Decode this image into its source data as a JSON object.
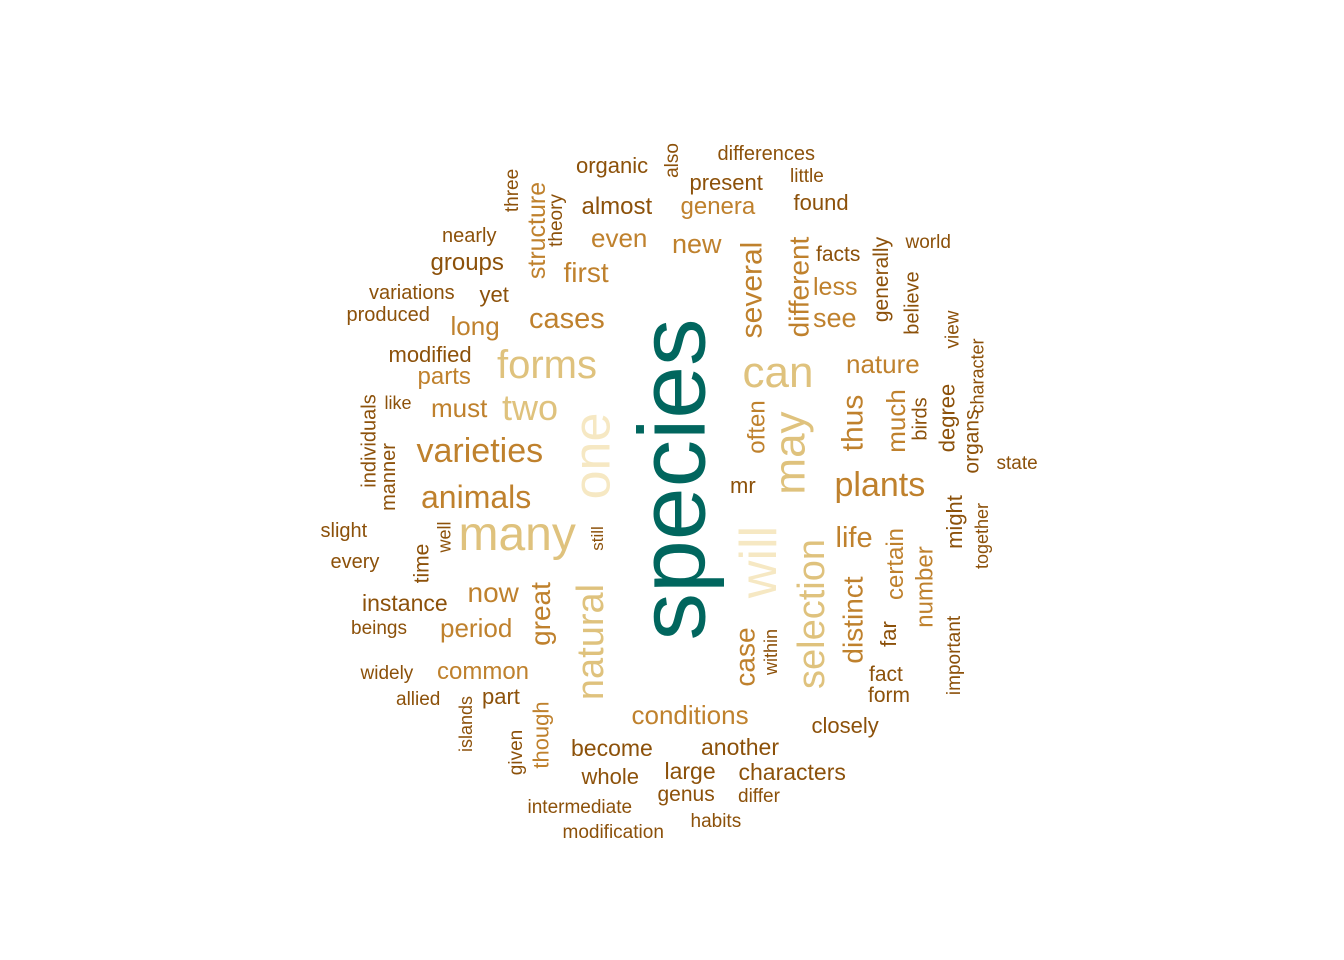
{
  "palette": {
    "teal": "#01665e",
    "cream": "#f6e8c3",
    "tan": "#dfc27d",
    "brown": "#bf812d",
    "dark_brown": "#8c510a"
  },
  "words": [
    {
      "text": "species",
      "color": "teal",
      "rotated": true
    },
    {
      "text": "will",
      "color": "cream",
      "rotated": true
    },
    {
      "text": "one",
      "color": "cream",
      "rotated": true
    },
    {
      "text": "many",
      "color": "tan",
      "rotated": false
    },
    {
      "text": "may",
      "color": "tan",
      "rotated": true
    },
    {
      "text": "can",
      "color": "tan",
      "rotated": false
    },
    {
      "text": "forms",
      "color": "tan",
      "rotated": false
    },
    {
      "text": "selection",
      "color": "tan",
      "rotated": true
    },
    {
      "text": "natural",
      "color": "tan",
      "rotated": true
    },
    {
      "text": "two",
      "color": "tan",
      "rotated": false
    },
    {
      "text": "varieties",
      "color": "brown",
      "rotated": false
    },
    {
      "text": "plants",
      "color": "brown",
      "rotated": false
    },
    {
      "text": "animals",
      "color": "brown",
      "rotated": false
    },
    {
      "text": "several",
      "color": "brown",
      "rotated": true
    },
    {
      "text": "thus",
      "color": "brown",
      "rotated": true
    },
    {
      "text": "great",
      "color": "brown",
      "rotated": true
    },
    {
      "text": "distinct",
      "color": "brown",
      "rotated": true
    },
    {
      "text": "different",
      "color": "brown",
      "rotated": true
    },
    {
      "text": "case",
      "color": "brown",
      "rotated": true
    },
    {
      "text": "cases",
      "color": "brown",
      "rotated": false
    },
    {
      "text": "life",
      "color": "brown",
      "rotated": false
    },
    {
      "text": "first",
      "color": "brown",
      "rotated": false
    },
    {
      "text": "now",
      "color": "brown",
      "rotated": false
    },
    {
      "text": "much",
      "color": "brown",
      "rotated": true
    },
    {
      "text": "conditions",
      "color": "brown",
      "rotated": false
    },
    {
      "text": "nature",
      "color": "brown",
      "rotated": false
    },
    {
      "text": "must",
      "color": "brown",
      "rotated": false
    },
    {
      "text": "see",
      "color": "brown",
      "rotated": false
    },
    {
      "text": "even",
      "color": "brown",
      "rotated": false
    },
    {
      "text": "new",
      "color": "brown",
      "rotated": false
    },
    {
      "text": "structure",
      "color": "brown",
      "rotated": true
    },
    {
      "text": "period",
      "color": "brown",
      "rotated": false
    },
    {
      "text": "number",
      "color": "brown",
      "rotated": true
    },
    {
      "text": "long",
      "color": "brown",
      "rotated": false
    },
    {
      "text": "certain",
      "color": "brown",
      "rotated": true
    },
    {
      "text": "common",
      "color": "brown",
      "rotated": false
    },
    {
      "text": "often",
      "color": "brown",
      "rotated": true
    },
    {
      "text": "genera",
      "color": "brown",
      "rotated": false
    },
    {
      "text": "less",
      "color": "brown",
      "rotated": false
    },
    {
      "text": "parts",
      "color": "brown",
      "rotated": false
    },
    {
      "text": "though",
      "color": "brown",
      "rotated": true
    },
    {
      "text": "groups",
      "color": "dark_brown",
      "rotated": false
    },
    {
      "text": "almost",
      "color": "dark_brown",
      "rotated": false
    },
    {
      "text": "instance",
      "color": "dark_brown",
      "rotated": false
    },
    {
      "text": "degree",
      "color": "dark_brown",
      "rotated": true
    },
    {
      "text": "generally",
      "color": "dark_brown",
      "rotated": true
    },
    {
      "text": "become",
      "color": "dark_brown",
      "rotated": false
    },
    {
      "text": "another",
      "color": "dark_brown",
      "rotated": false
    },
    {
      "text": "might",
      "color": "dark_brown",
      "rotated": true
    },
    {
      "text": "large",
      "color": "dark_brown",
      "rotated": false
    },
    {
      "text": "whole",
      "color": "dark_brown",
      "rotated": false
    },
    {
      "text": "characters",
      "color": "dark_brown",
      "rotated": false
    },
    {
      "text": "closely",
      "color": "dark_brown",
      "rotated": false
    },
    {
      "text": "far",
      "color": "dark_brown",
      "rotated": true
    },
    {
      "text": "yet",
      "color": "dark_brown",
      "rotated": false
    },
    {
      "text": "mr",
      "color": "dark_brown",
      "rotated": false
    },
    {
      "text": "organic",
      "color": "dark_brown",
      "rotated": false
    },
    {
      "text": "present",
      "color": "dark_brown",
      "rotated": false
    },
    {
      "text": "found",
      "color": "dark_brown",
      "rotated": false
    },
    {
      "text": "modified",
      "color": "dark_brown",
      "rotated": false
    },
    {
      "text": "part",
      "color": "dark_brown",
      "rotated": false
    },
    {
      "text": "form",
      "color": "dark_brown",
      "rotated": false
    },
    {
      "text": "fact",
      "color": "dark_brown",
      "rotated": false
    },
    {
      "text": "facts",
      "color": "dark_brown",
      "rotated": false
    },
    {
      "text": "birds",
      "color": "dark_brown",
      "rotated": true
    },
    {
      "text": "organs",
      "color": "dark_brown",
      "rotated": true
    },
    {
      "text": "time",
      "color": "dark_brown",
      "rotated": true
    },
    {
      "text": "individuals",
      "color": "dark_brown",
      "rotated": true
    },
    {
      "text": "manner",
      "color": "dark_brown",
      "rotated": true
    },
    {
      "text": "genus",
      "color": "dark_brown",
      "rotated": false
    },
    {
      "text": "important",
      "color": "dark_brown",
      "rotated": true
    },
    {
      "text": "differences",
      "color": "dark_brown",
      "rotated": false
    },
    {
      "text": "variations",
      "color": "dark_brown",
      "rotated": false
    },
    {
      "text": "produced",
      "color": "dark_brown",
      "rotated": false
    },
    {
      "text": "nearly",
      "color": "dark_brown",
      "rotated": false
    },
    {
      "text": "believe",
      "color": "dark_brown",
      "rotated": true
    },
    {
      "text": "theory",
      "color": "dark_brown",
      "rotated": true
    },
    {
      "text": "three",
      "color": "dark_brown",
      "rotated": true
    },
    {
      "text": "also",
      "color": "dark_brown",
      "rotated": true
    },
    {
      "text": "little",
      "color": "dark_brown",
      "rotated": false
    },
    {
      "text": "world",
      "color": "dark_brown",
      "rotated": false
    },
    {
      "text": "view",
      "color": "dark_brown",
      "rotated": true
    },
    {
      "text": "character",
      "color": "dark_brown",
      "rotated": true
    },
    {
      "text": "state",
      "color": "dark_brown",
      "rotated": false
    },
    {
      "text": "together",
      "color": "dark_brown",
      "rotated": true
    },
    {
      "text": "like",
      "color": "dark_brown",
      "rotated": false
    },
    {
      "text": "slight",
      "color": "dark_brown",
      "rotated": false
    },
    {
      "text": "every",
      "color": "dark_brown",
      "rotated": false
    },
    {
      "text": "well",
      "color": "dark_brown",
      "rotated": true
    },
    {
      "text": "still",
      "color": "dark_brown",
      "rotated": true
    },
    {
      "text": "beings",
      "color": "dark_brown",
      "rotated": false
    },
    {
      "text": "widely",
      "color": "dark_brown",
      "rotated": false
    },
    {
      "text": "allied",
      "color": "dark_brown",
      "rotated": false
    },
    {
      "text": "islands",
      "color": "dark_brown",
      "rotated": true
    },
    {
      "text": "given",
      "color": "dark_brown",
      "rotated": true
    },
    {
      "text": "intermediate",
      "color": "dark_brown",
      "rotated": false
    },
    {
      "text": "modification",
      "color": "dark_brown",
      "rotated": false
    },
    {
      "text": "habits",
      "color": "dark_brown",
      "rotated": false
    },
    {
      "text": "differ",
      "color": "dark_brown",
      "rotated": false
    },
    {
      "text": "within",
      "color": "dark_brown",
      "rotated": true
    }
  ]
}
